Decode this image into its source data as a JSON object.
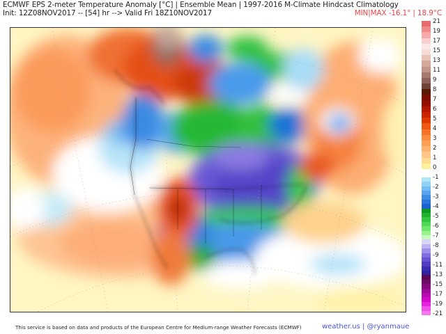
{
  "header": {
    "title_line1": "ECMWF EPS 2-meter Temperature Anomaly [°C] | Ensemble Mean | 1997-2016 M-Climate Hindcast Climatology",
    "title_line2": "Init: 12Z08NOV2017 -- [54] hr --> Valid Fri 18Z10NOV2017",
    "minmax": "MIN|MAX -16.1° | 18.9°C",
    "minmax_color": "#e8454a"
  },
  "map": {
    "region": "North America",
    "variable": "2-meter Temperature Anomaly",
    "units": "°C",
    "min": -16.1,
    "max": 18.9
  },
  "colorbar": {
    "labels": [
      "21",
      "19",
      "17",
      "15",
      "13",
      "11",
      "9",
      "8",
      "7",
      "6",
      "5",
      "4",
      "3",
      "2",
      "1",
      "0",
      "-1",
      "-2",
      "-3",
      "-4",
      "-5",
      "-6",
      "-7",
      "-8",
      "-9",
      "-11",
      "-13",
      "-15",
      "-17",
      "-19",
      "-21"
    ],
    "warm_colors": [
      "#e96a6a",
      "#f08a8a",
      "#f7a9a9",
      "#fbd0d0",
      "#fde8e8",
      "#f6dcd6",
      "#e7c2b8",
      "#d4a89b",
      "#c2948a",
      "#a77a70",
      "#8d625a",
      "#6e4438",
      "#5a1a08",
      "#7a0f02",
      "#950e00",
      "#b51800",
      "#c92600",
      "#df3a00",
      "#ef5a12",
      "#f7732a",
      "#fb8c3e",
      "#fda056",
      "#feb46e",
      "#ffc88a",
      "#ffdc92",
      "#fff09a"
    ],
    "cold_colors": [
      "#aee6f6",
      "#8fd2f6",
      "#74bcf4",
      "#5aa4ee",
      "#3f8ce6",
      "#2a74dc",
      "#1a60ce",
      "#0f9a22",
      "#1fb22e",
      "#35c73f",
      "#4ed856",
      "#6ee66c",
      "#98f08e",
      "#c8f8c0",
      "#d8d6f6",
      "#bcb4f0",
      "#9c90ea",
      "#7f70de",
      "#6654d2",
      "#4f3cc2",
      "#3c2cb2",
      "#2e22a0",
      "#5a0a52",
      "#6e0a66",
      "#840a7e",
      "#9c0a96",
      "#b80ab0",
      "#d00ac8",
      "#e820e0",
      "#f050e8",
      "#f478ec"
    ]
  },
  "footer": {
    "credit": "This service is based on data and products of the European Centre for Medium-range Weather Forecasts (ECMWF)",
    "attribution": "weather.us | @ryanmaue",
    "attribution_color": "#4b56d6"
  }
}
